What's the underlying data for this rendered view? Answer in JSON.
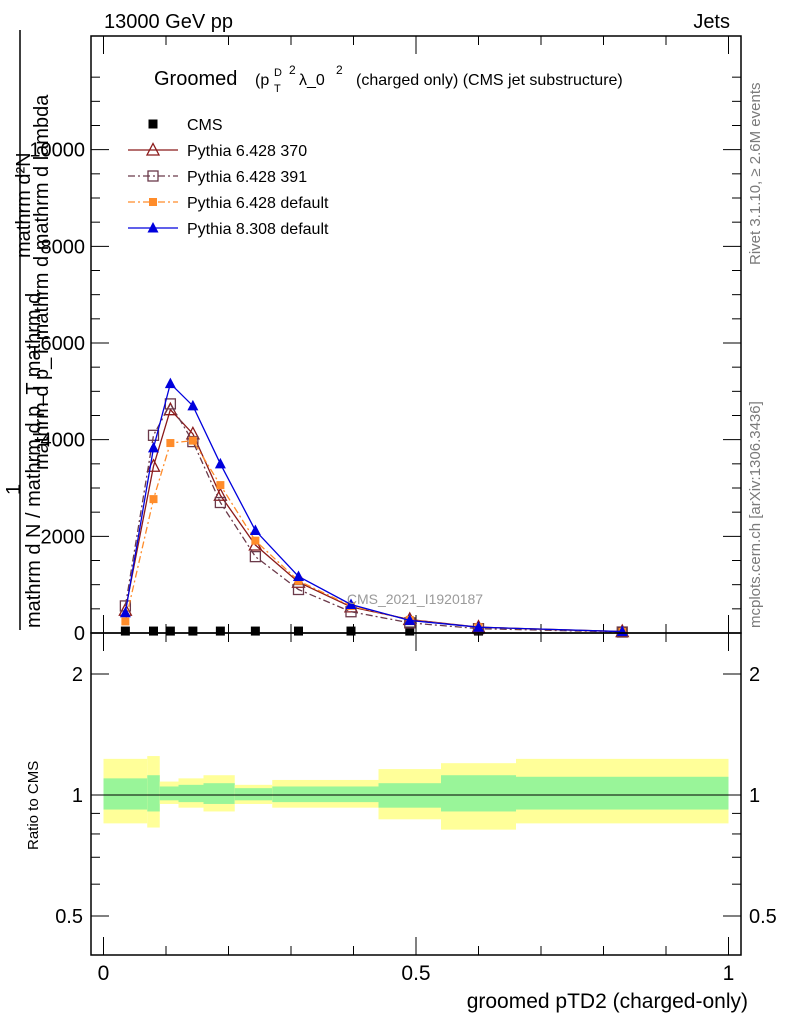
{
  "header": {
    "left": "13000 GeV pp",
    "right": "Jets"
  },
  "side_labels": {
    "rivet": "Rivet 3.1.10, ≥ 2.6M events",
    "mcplots": "mcplots.cern.ch [arXiv:1306.3436]"
  },
  "plot_title": {
    "main": "Groomed",
    "p": "(p",
    "T": "T",
    "D": "D",
    "sq1": "2",
    "lam": "λ_0",
    "sq2": "2",
    "rest": "(charged only) (CMS jet substructure)"
  },
  "ylabel": {
    "numerator": "mathrm d²N",
    "denominator": "mathrm d p_T mathrm d mathrm d lambda",
    "one": "1",
    "lower": "mathrm d N / mathrm d p_T mathrm d",
    "T": "T"
  },
  "watermark": "CMS_2021_I1920187",
  "xlabel": "groomed pTD2 (charged-only)",
  "ratio_ylabel": "Ratio to CMS",
  "colors": {
    "cms": "#000000",
    "p370": "#8b1a1a",
    "p391": "#6b3a4a",
    "p6def": "#ff8c2a",
    "p8": "#0000dd",
    "band_inner": "#99f599",
    "band_outer": "#ffff99"
  },
  "chart_data": [
    {
      "type": "line",
      "title": "",
      "xlim": [
        -0.02,
        1.02
      ],
      "ylim": [
        0,
        12000
      ],
      "yticks": [
        0,
        2000,
        4000,
        6000,
        8000,
        10000
      ],
      "ytick_labels": [
        "0",
        "2000",
        "4000",
        "6000",
        "8000",
        "10000"
      ],
      "legend": "top-left",
      "series": [
        {
          "name": "CMS",
          "style": "cms",
          "x": [
            0.035,
            0.08,
            0.107,
            0.143,
            0.187,
            0.243,
            0.312,
            0.396,
            0.49,
            0.6,
            0.83
          ],
          "y": [
            40,
            40,
            40,
            40,
            40,
            40,
            40,
            40,
            40,
            40,
            40
          ]
        },
        {
          "name": "Pythia 6.428 370",
          "style": "p370",
          "x": [
            0.035,
            0.08,
            0.107,
            0.143,
            0.187,
            0.243,
            0.312,
            0.396,
            0.49,
            0.6,
            0.83
          ],
          "y": [
            470,
            3450,
            4620,
            4120,
            2850,
            1820,
            1050,
            540,
            280,
            120,
            30
          ]
        },
        {
          "name": "Pythia 6.428 391",
          "style": "p391",
          "x": [
            0.035,
            0.08,
            0.107,
            0.143,
            0.187,
            0.243,
            0.312,
            0.396,
            0.49,
            0.6,
            0.83
          ],
          "y": [
            560,
            4090,
            4740,
            3960,
            2700,
            1580,
            900,
            440,
            210,
            90,
            20
          ]
        },
        {
          "name": "Pythia 6.428 default",
          "style": "p6def",
          "x": [
            0.035,
            0.08,
            0.107,
            0.143,
            0.187,
            0.243,
            0.312,
            0.396,
            0.49,
            0.6,
            0.83
          ],
          "y": [
            240,
            2770,
            3930,
            3980,
            3060,
            1910,
            1080,
            560,
            270,
            120,
            25
          ]
        },
        {
          "name": "Pythia 8.308 default",
          "style": "p8",
          "x": [
            0.035,
            0.08,
            0.107,
            0.143,
            0.187,
            0.243,
            0.312,
            0.396,
            0.49,
            0.6,
            0.83
          ],
          "y": [
            420,
            3830,
            5160,
            4700,
            3500,
            2120,
            1170,
            590,
            260,
            120,
            30
          ]
        }
      ]
    },
    {
      "type": "area",
      "title": "",
      "xlim": [
        -0.02,
        1.02
      ],
      "ylim_note": "log scale",
      "yticks": [
        0.5,
        1,
        2
      ],
      "ytick_labels": [
        "0.5",
        "1",
        "2"
      ],
      "xticks": [
        0,
        0.5,
        1
      ],
      "xtick_labels": [
        "0",
        "0.5",
        "1"
      ],
      "reference_line": 1,
      "bins": [
        {
          "x0": 0.0,
          "x1": 0.07,
          "inner": [
            0.92,
            1.1
          ],
          "outer": [
            0.85,
            1.23
          ]
        },
        {
          "x0": 0.07,
          "x1": 0.09,
          "inner": [
            0.91,
            1.12
          ],
          "outer": [
            0.83,
            1.25
          ]
        },
        {
          "x0": 0.09,
          "x1": 0.12,
          "inner": [
            0.97,
            1.05
          ],
          "outer": [
            0.95,
            1.08
          ]
        },
        {
          "x0": 0.12,
          "x1": 0.16,
          "inner": [
            0.96,
            1.06
          ],
          "outer": [
            0.93,
            1.1
          ]
        },
        {
          "x0": 0.16,
          "x1": 0.21,
          "inner": [
            0.95,
            1.07
          ],
          "outer": [
            0.91,
            1.12
          ]
        },
        {
          "x0": 0.21,
          "x1": 0.27,
          "inner": [
            0.97,
            1.04
          ],
          "outer": [
            0.95,
            1.06
          ]
        },
        {
          "x0": 0.27,
          "x1": 0.44,
          "inner": [
            0.96,
            1.05
          ],
          "outer": [
            0.93,
            1.09
          ]
        },
        {
          "x0": 0.44,
          "x1": 0.54,
          "inner": [
            0.93,
            1.07
          ],
          "outer": [
            0.87,
            1.16
          ]
        },
        {
          "x0": 0.54,
          "x1": 0.66,
          "inner": [
            0.91,
            1.12
          ],
          "outer": [
            0.82,
            1.2
          ]
        },
        {
          "x0": 0.66,
          "x1": 1.0,
          "inner": [
            0.92,
            1.11
          ],
          "outer": [
            0.85,
            1.23
          ]
        }
      ]
    }
  ]
}
